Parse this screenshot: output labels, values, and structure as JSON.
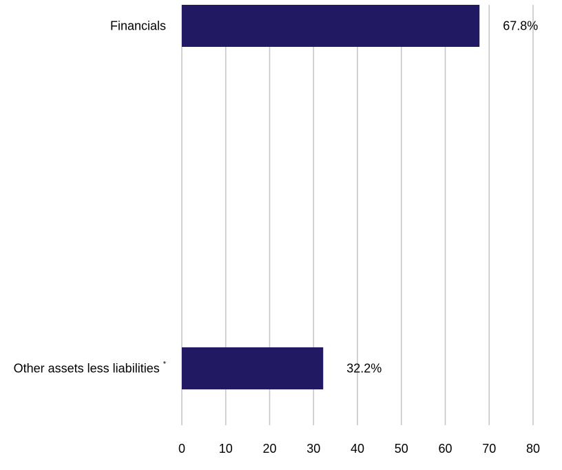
{
  "chart_data": {
    "type": "bar",
    "orientation": "horizontal",
    "categories": [
      "Financials",
      "Other assets less liabilities"
    ],
    "category_footnote_marks": [
      "",
      "*"
    ],
    "values": [
      67.8,
      32.2
    ],
    "data_labels": [
      "67.8%",
      "32.2%"
    ],
    "xlim": [
      0,
      80
    ],
    "x_ticks": [
      0,
      10,
      20,
      30,
      40,
      50,
      60,
      70,
      80
    ],
    "title": "",
    "xlabel": "",
    "ylabel": "",
    "grid": "vertical",
    "legend": "none",
    "colors": {
      "bar": "#211a63",
      "grid": "#c6c6c6",
      "text": "#000000"
    }
  }
}
